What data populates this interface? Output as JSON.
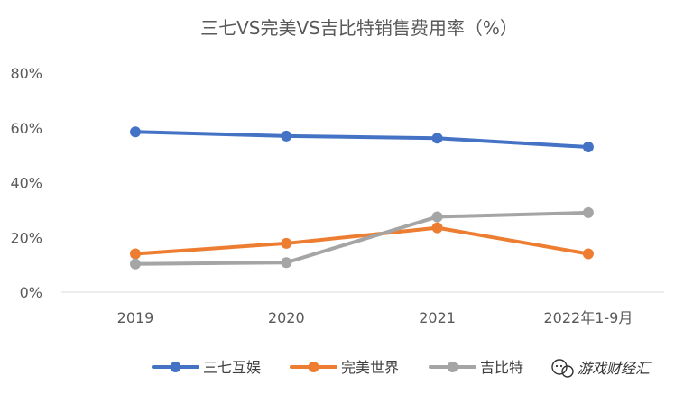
{
  "chart_data": {
    "type": "line",
    "title": "三七VS完美VS吉比特销售费用率（%）",
    "categories": [
      "2019",
      "2020",
      "2021",
      "2022年1-9月"
    ],
    "ylim": [
      0,
      80
    ],
    "yticks": [
      0,
      20,
      40,
      60,
      80
    ],
    "ytick_labels": [
      "0%",
      "20%",
      "40%",
      "60%",
      "80%"
    ],
    "grid": false,
    "legend_position": "bottom",
    "series": [
      {
        "name": "三七互娱",
        "color": "#4472C4",
        "values": [
          58.5,
          57.0,
          56.2,
          53.0
        ]
      },
      {
        "name": "完美世界",
        "color": "#ED7D31",
        "values": [
          14.0,
          17.8,
          23.5,
          14.0
        ]
      },
      {
        "name": "吉比特",
        "color": "#A5A5A5",
        "values": [
          10.3,
          10.8,
          27.5,
          29.0
        ]
      }
    ]
  },
  "watermark": {
    "text": "游戏财经汇",
    "icon": "wechat-icon"
  }
}
